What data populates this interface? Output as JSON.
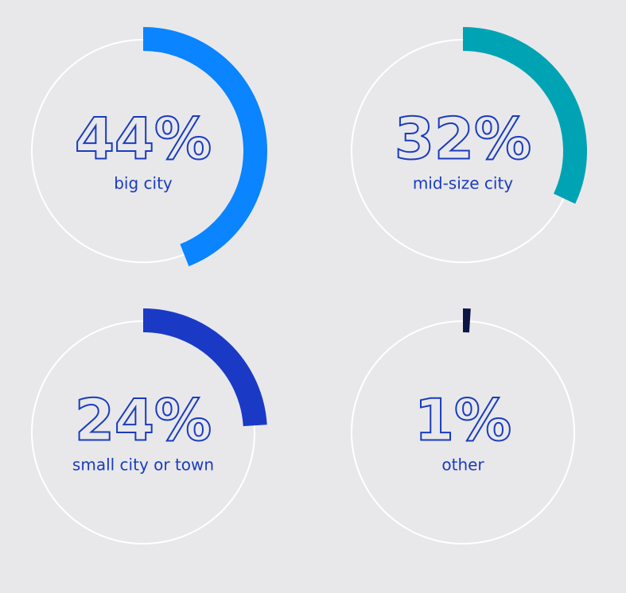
{
  "chart_data": {
    "type": "gauge",
    "categories": [
      "big city",
      "mid-size city",
      "small city or town",
      "other"
    ],
    "values": [
      44,
      32,
      24,
      1
    ],
    "value_labels": [
      "44%",
      "32%",
      "24%",
      "1%"
    ],
    "colors": [
      "#0a84ff",
      "#00a3b4",
      "#1a3ac6",
      "#0b1546"
    ],
    "ylim": [
      0,
      100
    ]
  }
}
